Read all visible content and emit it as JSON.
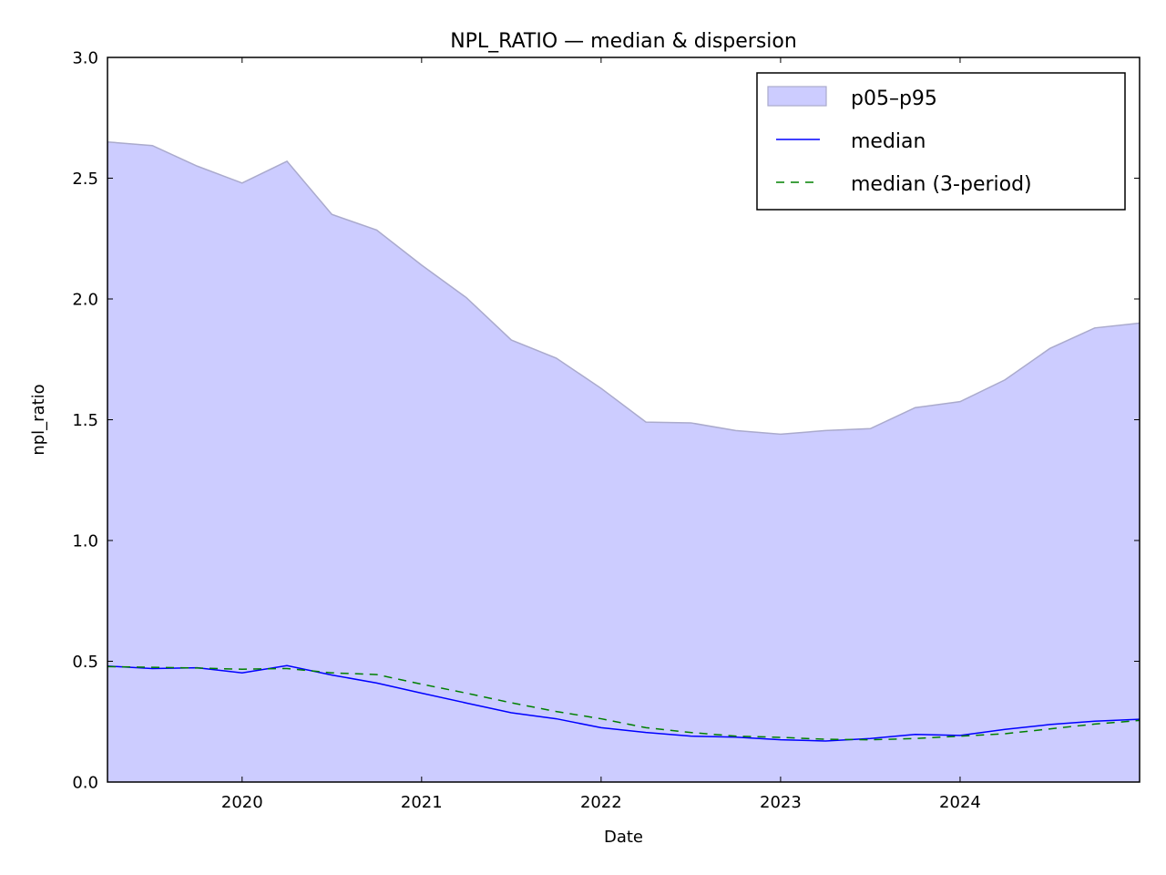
{
  "chart_data": {
    "type": "area",
    "title": "NPL_RATIO — median & dispersion",
    "xlabel": "Date",
    "ylabel": "npl_ratio",
    "x_dates": [
      "2019-04",
      "2019-07",
      "2019-10",
      "2020-01",
      "2020-04",
      "2020-07",
      "2020-10",
      "2021-01",
      "2021-04",
      "2021-07",
      "2021-10",
      "2022-01",
      "2022-04",
      "2022-07",
      "2022-10",
      "2023-01",
      "2023-04",
      "2023-07",
      "2023-10",
      "2024-01",
      "2024-04",
      "2024-07",
      "2024-10",
      "2025-01"
    ],
    "x_ticks": [
      "2020",
      "2021",
      "2022",
      "2023",
      "2024"
    ],
    "y_ticks": [
      "0.0",
      "0.5",
      "1.0",
      "1.5",
      "2.0",
      "2.5",
      "3.0"
    ],
    "ylim": [
      0,
      3.0
    ],
    "grid": false,
    "legend_position": "top-right",
    "series": [
      {
        "name": "p05–p95",
        "kind": "band",
        "color": "#ccccff",
        "lower": [
          0,
          0,
          0,
          0,
          0,
          0,
          0,
          0,
          0,
          0,
          0,
          0,
          0,
          0,
          0,
          0,
          0,
          0,
          0,
          0,
          0,
          0,
          0,
          0
        ],
        "upper": [
          2.65,
          2.635,
          2.55,
          2.48,
          2.57,
          2.35,
          2.285,
          2.14,
          2.005,
          1.83,
          1.755,
          1.63,
          1.49,
          1.487,
          1.455,
          1.44,
          1.455,
          1.463,
          1.55,
          1.575,
          1.665,
          1.795,
          1.88,
          1.9
        ]
      },
      {
        "name": "median",
        "kind": "line",
        "color": "#0000ff",
        "values": [
          0.48,
          0.47,
          0.473,
          0.452,
          0.482,
          0.443,
          0.41,
          0.368,
          0.327,
          0.287,
          0.262,
          0.225,
          0.205,
          0.19,
          0.186,
          0.175,
          0.17,
          0.18,
          0.197,
          0.193,
          0.218,
          0.238,
          0.252,
          0.26
        ]
      },
      {
        "name": "median (3-period)",
        "kind": "dashed",
        "color": "#008000",
        "values": [
          0.478,
          0.475,
          0.472,
          0.467,
          0.47,
          0.452,
          0.445,
          0.405,
          0.368,
          0.328,
          0.292,
          0.262,
          0.225,
          0.205,
          0.19,
          0.185,
          0.177,
          0.175,
          0.18,
          0.19,
          0.2,
          0.22,
          0.24,
          0.255
        ]
      }
    ]
  }
}
